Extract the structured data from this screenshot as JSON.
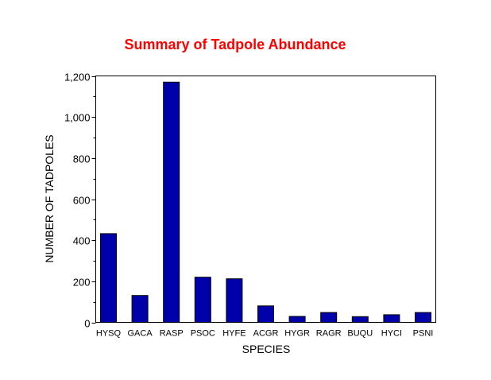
{
  "chart_data": {
    "type": "bar",
    "title": "Summary of Tadpole Abundance",
    "xlabel": "SPECIES",
    "ylabel": "NUMBER OF TADPOLES",
    "categories": [
      "HYSQ",
      "GACA",
      "RASP",
      "PSOC",
      "HYFE",
      "ACGR",
      "HYGR",
      "RAGR",
      "BUQU",
      "HYCI",
      "PSNI"
    ],
    "values": [
      432,
      131,
      1170,
      220,
      212,
      80,
      29,
      48,
      28,
      37,
      48
    ],
    "ylim": [
      0,
      1200
    ],
    "yticks": [
      0,
      200,
      400,
      600,
      800,
      1000,
      1200
    ],
    "ytick_labels": [
      "0",
      "200",
      "400",
      "600",
      "800",
      "1,000",
      "1,200"
    ],
    "grid": false,
    "legend": "none"
  },
  "colors": {
    "title": "#ff0000",
    "bar_fill": "#0000aa",
    "axis": "#000000",
    "background": "#ffffff"
  }
}
